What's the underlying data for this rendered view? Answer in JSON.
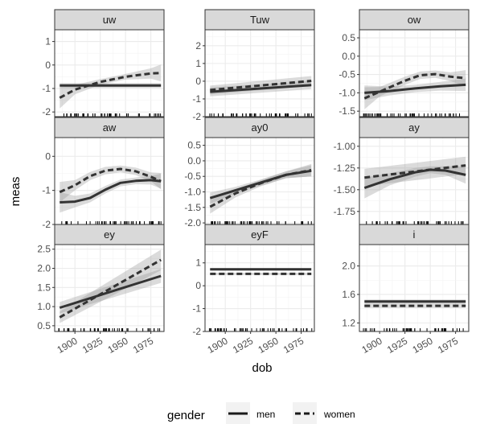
{
  "chart_data": {
    "type": "line",
    "layout": "facet_wrap 3x3",
    "xlabel": "dob",
    "ylabel": "meas",
    "x_ticks": [
      1900,
      1925,
      1950,
      1975
    ],
    "xlim": [
      1880,
      1988
    ],
    "x_tick_label_angle": 30,
    "legend": {
      "title": "gender",
      "position": "bottom",
      "entries": [
        {
          "name": "men",
          "linetype": "solid"
        },
        {
          "name": "women",
          "linetype": "dashed"
        }
      ]
    },
    "colors": {
      "line": "#333333",
      "ribbon": "#999999",
      "strip": "#d9d9d9"
    },
    "rug": true,
    "panels": [
      {
        "name": "uw",
        "ylim": [
          -2.2,
          1.5
        ],
        "y_ticks": [
          1,
          0,
          -1,
          -2
        ],
        "y_tick_labels": [
          "1",
          "0",
          "-1",
          "-2"
        ],
        "series": [
          {
            "name": "men",
            "x": [
              1885,
              1985
            ],
            "y": [
              -0.87,
              -0.87
            ],
            "ci": [
              [
                -0.97,
                -0.77
              ],
              [
                -0.97,
                -0.77
              ]
            ]
          },
          {
            "name": "women",
            "x": [
              1885,
              1900,
              1925,
              1950,
              1975,
              1985
            ],
            "y": [
              -1.4,
              -1.05,
              -0.72,
              -0.5,
              -0.36,
              -0.34
            ],
            "ci": [
              [
                -1.85,
                -0.95
              ],
              [
                -1.25,
                -0.85
              ],
              [
                -0.84,
                -0.6
              ],
              [
                -0.62,
                -0.38
              ],
              [
                -0.58,
                -0.14
              ],
              [
                -0.7,
                0.02
              ]
            ]
          }
        ]
      },
      {
        "name": "Tuw",
        "ylim": [
          -2.0,
          2.9
        ],
        "y_ticks": [
          2,
          1,
          0,
          -1,
          -2
        ],
        "y_tick_labels": [
          "2",
          "1",
          "0",
          "-1",
          "-2"
        ],
        "series": [
          {
            "name": "men",
            "x": [
              1885,
              1985
            ],
            "y": [
              -0.6,
              -0.22
            ],
            "ci": [
              [
                -0.85,
                -0.35
              ],
              [
                -0.45,
                0.01
              ]
            ]
          },
          {
            "name": "women",
            "x": [
              1885,
              1985
            ],
            "y": [
              -0.5,
              0.02
            ],
            "ci": [
              [
                -0.75,
                -0.25
              ],
              [
                -0.25,
                0.29
              ]
            ]
          }
        ]
      },
      {
        "name": "ow",
        "ylim": [
          -1.65,
          0.72
        ],
        "y_ticks": [
          0.5,
          0.0,
          -0.5,
          -1.0,
          -1.5
        ],
        "y_tick_labels": [
          "0.5",
          "0.0",
          "-0.5",
          "-1.0",
          "-1.5"
        ],
        "series": [
          {
            "name": "men",
            "x": [
              1885,
              1910,
              1935,
              1960,
              1985
            ],
            "y": [
              -1.0,
              -0.95,
              -0.88,
              -0.82,
              -0.78
            ],
            "ci": [
              [
                -1.2,
                -0.8
              ],
              [
                -1.07,
                -0.83
              ],
              [
                -0.98,
                -0.78
              ],
              [
                -0.94,
                -0.7
              ],
              [
                -0.95,
                -0.61
              ]
            ]
          },
          {
            "name": "women",
            "x": [
              1885,
              1900,
              1925,
              1940,
              1955,
              1970,
              1985
            ],
            "y": [
              -1.15,
              -0.97,
              -0.67,
              -0.52,
              -0.49,
              -0.56,
              -0.6
            ],
            "ci": [
              [
                -1.45,
                -0.85
              ],
              [
                -1.1,
                -0.84
              ],
              [
                -0.78,
                -0.56
              ],
              [
                -0.62,
                -0.42
              ],
              [
                -0.59,
                -0.39
              ],
              [
                -0.68,
                -0.44
              ],
              [
                -0.82,
                -0.38
              ]
            ]
          }
        ]
      },
      {
        "name": "aw",
        "ylim": [
          -2.0,
          0.55
        ],
        "y_ticks": [
          0,
          -1,
          -2
        ],
        "y_tick_labels": [
          "0",
          "-1",
          "-2"
        ],
        "series": [
          {
            "name": "men",
            "x": [
              1885,
              1900,
              1915,
              1930,
              1945,
              1960,
              1975,
              1985
            ],
            "y": [
              -1.35,
              -1.33,
              -1.22,
              -0.98,
              -0.78,
              -0.72,
              -0.7,
              -0.73
            ],
            "ci": [
              [
                -1.65,
                -1.05
              ],
              [
                -1.5,
                -1.16
              ],
              [
                -1.35,
                -1.09
              ],
              [
                -1.09,
                -0.87
              ],
              [
                -0.88,
                -0.68
              ],
              [
                -0.82,
                -0.62
              ],
              [
                -0.83,
                -0.57
              ],
              [
                -0.95,
                -0.51
              ]
            ]
          },
          {
            "name": "women",
            "x": [
              1885,
              1900,
              1915,
              1930,
              1945,
              1960,
              1975,
              1985
            ],
            "y": [
              -1.05,
              -0.85,
              -0.58,
              -0.42,
              -0.37,
              -0.44,
              -0.6,
              -0.73
            ],
            "ci": [
              [
                -1.35,
                -0.75
              ],
              [
                -1.0,
                -0.7
              ],
              [
                -0.7,
                -0.46
              ],
              [
                -0.53,
                -0.31
              ],
              [
                -0.47,
                -0.27
              ],
              [
                -0.55,
                -0.33
              ],
              [
                -0.73,
                -0.47
              ],
              [
                -0.97,
                -0.49
              ]
            ]
          }
        ]
      },
      {
        "name": "ay0",
        "ylim": [
          -2.05,
          0.75
        ],
        "y_ticks": [
          0.5,
          0.0,
          -0.5,
          -1.0,
          -1.5,
          -2.0
        ],
        "y_tick_labels": [
          "0.5",
          "0.0",
          "-0.5",
          "-1.0",
          "-1.5",
          "-2.0"
        ],
        "series": [
          {
            "name": "men",
            "x": [
              1885,
              1910,
              1935,
              1960,
              1985
            ],
            "y": [
              -1.2,
              -0.95,
              -0.7,
              -0.45,
              -0.32
            ],
            "ci": [
              [
                -1.38,
                -1.02
              ],
              [
                -1.06,
                -0.84
              ],
              [
                -0.8,
                -0.6
              ],
              [
                -0.56,
                -0.34
              ],
              [
                -0.5,
                -0.14
              ]
            ]
          },
          {
            "name": "women",
            "x": [
              1885,
              1910,
              1935,
              1960,
              1985
            ],
            "y": [
              -1.48,
              -1.05,
              -0.72,
              -0.45,
              -0.3
            ],
            "ci": [
              [
                -1.7,
                -1.26
              ],
              [
                -1.18,
                -0.92
              ],
              [
                -0.82,
                -0.62
              ],
              [
                -0.56,
                -0.34
              ],
              [
                -0.5,
                -0.1
              ]
            ]
          }
        ]
      },
      {
        "name": "ay",
        "ylim": [
          -1.9,
          -0.9
        ],
        "y_ticks": [
          -1.0,
          -1.25,
          -1.5,
          -1.75
        ],
        "y_tick_labels": [
          "-1.00",
          "-1.25",
          "-1.50",
          "-1.75"
        ],
        "series": [
          {
            "name": "men",
            "x": [
              1885,
              1910,
              1935,
              1950,
              1965,
              1985
            ],
            "y": [
              -1.48,
              -1.38,
              -1.3,
              -1.27,
              -1.28,
              -1.33
            ],
            "ci": [
              [
                -1.6,
                -1.36
              ],
              [
                -1.45,
                -1.31
              ],
              [
                -1.35,
                -1.25
              ],
              [
                -1.31,
                -1.23
              ],
              [
                -1.33,
                -1.23
              ],
              [
                -1.43,
                -1.23
              ]
            ]
          },
          {
            "name": "women",
            "x": [
              1885,
              1985
            ],
            "y": [
              -1.36,
              -1.22
            ],
            "ci": [
              [
                -1.46,
                -1.26
              ],
              [
                -1.32,
                -1.12
              ]
            ]
          }
        ]
      },
      {
        "name": "ey",
        "ylim": [
          0.35,
          2.62
        ],
        "y_ticks": [
          2.5,
          2.0,
          1.5,
          1.0,
          0.5
        ],
        "y_tick_labels": [
          "2.5",
          "2.0",
          "1.5",
          "1.0",
          "0.5"
        ],
        "series": [
          {
            "name": "men",
            "x": [
              1885,
              1985
            ],
            "y": [
              0.97,
              1.8
            ],
            "ci": [
              [
                0.82,
                1.12
              ],
              [
                1.62,
                1.98
              ]
            ]
          },
          {
            "name": "women",
            "x": [
              1885,
              1985
            ],
            "y": [
              0.72,
              2.22
            ],
            "ci": [
              [
                0.57,
                0.87
              ],
              [
                1.95,
                2.49
              ]
            ]
          }
        ]
      },
      {
        "name": "eyF",
        "ylim": [
          -2.0,
          1.8
        ],
        "y_ticks": [
          1,
          0,
          -1,
          -2
        ],
        "y_tick_labels": [
          "1",
          "0",
          "-1",
          "-2"
        ],
        "series": [
          {
            "name": "men",
            "x": [
              1885,
              1985
            ],
            "y": [
              0.72,
              0.72
            ],
            "ci": [
              [
                0.67,
                0.77
              ],
              [
                0.67,
                0.77
              ]
            ]
          },
          {
            "name": "women",
            "x": [
              1885,
              1985
            ],
            "y": [
              0.52,
              0.52
            ],
            "ci": [
              [
                0.47,
                0.57
              ],
              [
                0.47,
                0.57
              ]
            ]
          }
        ]
      },
      {
        "name": "i",
        "ylim": [
          1.08,
          2.3
        ],
        "y_ticks": [
          2.0,
          1.6,
          1.2
        ],
        "y_tick_labels": [
          "2.0",
          "1.6",
          "1.2"
        ],
        "series": [
          {
            "name": "men",
            "x": [
              1885,
              1985
            ],
            "y": [
              1.5,
              1.5
            ],
            "ci": [
              [
                1.47,
                1.53
              ],
              [
                1.47,
                1.53
              ]
            ]
          },
          {
            "name": "women",
            "x": [
              1885,
              1985
            ],
            "y": [
              1.44,
              1.44
            ],
            "ci": [
              [
                1.41,
                1.47
              ],
              [
                1.41,
                1.47
              ]
            ]
          }
        ]
      }
    ]
  }
}
